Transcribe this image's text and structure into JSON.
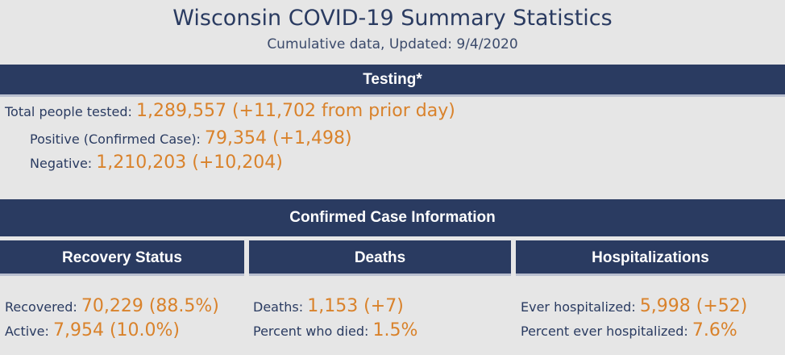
{
  "header": {
    "title": "Wisconsin COVID-19 Summary Statistics",
    "subtitle": "Cumulative data, Updated: 9/4/2020"
  },
  "testing": {
    "heading": "Testing*",
    "total_label": "Total people tested:",
    "total_value": "1,289,557 (+11,702 from prior day)",
    "positive_label": "Positive (Confirmed Case):",
    "positive_value": "79,354 (+1,498)",
    "negative_label": "Negative:",
    "negative_value": "1,210,203 (+10,204)"
  },
  "confirmed": {
    "heading": "Confirmed Case Information"
  },
  "recovery": {
    "heading": "Recovery Status",
    "recovered_label": "Recovered:",
    "recovered_value": "70,229 (88.5%)",
    "active_label": "Active:",
    "active_value": "7,954 (10.0%)"
  },
  "deaths": {
    "heading": "Deaths",
    "deaths_label": "Deaths:",
    "deaths_value": "1,153 (+7)",
    "percent_label": "Percent who died:",
    "percent_value": "1.5%"
  },
  "hospitalizations": {
    "heading": "Hospitalizations",
    "ever_label": "Ever hospitalized:",
    "ever_value": "5,998 (+52)",
    "percent_label": "Percent ever hospitalized:",
    "percent_value": "7.6%"
  },
  "colors": {
    "navy": "#2a3b61",
    "accent": "#d9822b",
    "background": "#e6e6e6"
  }
}
